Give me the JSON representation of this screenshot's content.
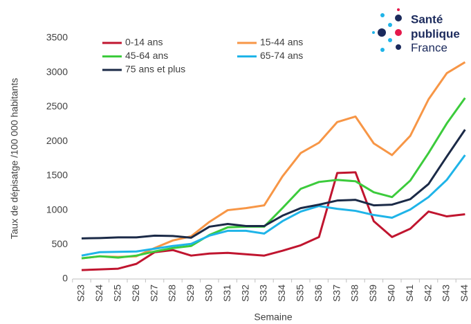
{
  "chart_data": {
    "type": "line",
    "ylabel": "Taux de dépisatge  /100 000 habitants",
    "xlabel": "Semaine",
    "logo": [
      "Santé",
      "publique",
      "France"
    ],
    "categories": [
      "S23",
      "S24",
      "S25",
      "S26",
      "S27",
      "S28",
      "S29",
      "S30",
      "S31",
      "S32",
      "S33",
      "S34",
      "S35",
      "S36",
      "S37",
      "S38",
      "S39",
      "S40",
      "S41",
      "S42",
      "S43",
      "S44"
    ],
    "ylim": [
      0,
      3500
    ],
    "yticks": [
      0,
      500,
      1000,
      1500,
      2000,
      2500,
      3000,
      3500
    ],
    "grid": false,
    "series": [
      {
        "name": "0-14 ans",
        "color": "#c0152f",
        "values": [
          130,
          140,
          150,
          220,
          390,
          420,
          340,
          370,
          380,
          360,
          340,
          410,
          490,
          610,
          1540,
          1550,
          840,
          610,
          730,
          980,
          910,
          940
        ]
      },
      {
        "name": "15-44 ans",
        "color": "#f79646",
        "values": [
          300,
          330,
          320,
          330,
          450,
          560,
          620,
          830,
          1000,
          1030,
          1070,
          1490,
          1830,
          1980,
          2280,
          2360,
          1970,
          1800,
          2080,
          2610,
          2990,
          3150
        ]
      },
      {
        "name": "45-64 ans",
        "color": "#3ccb3c",
        "values": [
          300,
          330,
          310,
          340,
          400,
          450,
          480,
          640,
          750,
          760,
          760,
          1030,
          1310,
          1410,
          1440,
          1420,
          1260,
          1190,
          1430,
          1830,
          2260,
          2630
        ]
      },
      {
        "name": "65-74 ans",
        "color": "#1fb4e8",
        "values": [
          340,
          390,
          395,
          400,
          440,
          480,
          510,
          630,
          700,
          700,
          660,
          840,
          980,
          1060,
          1020,
          990,
          930,
          890,
          1010,
          1190,
          1440,
          1800
        ]
      },
      {
        "name": "75 ans et plus",
        "color": "#1b2a47",
        "values": [
          590,
          595,
          605,
          605,
          630,
          625,
          600,
          760,
          800,
          770,
          770,
          920,
          1030,
          1080,
          1140,
          1150,
          1070,
          1080,
          1160,
          1380,
          1780,
          2170
        ]
      }
    ]
  }
}
